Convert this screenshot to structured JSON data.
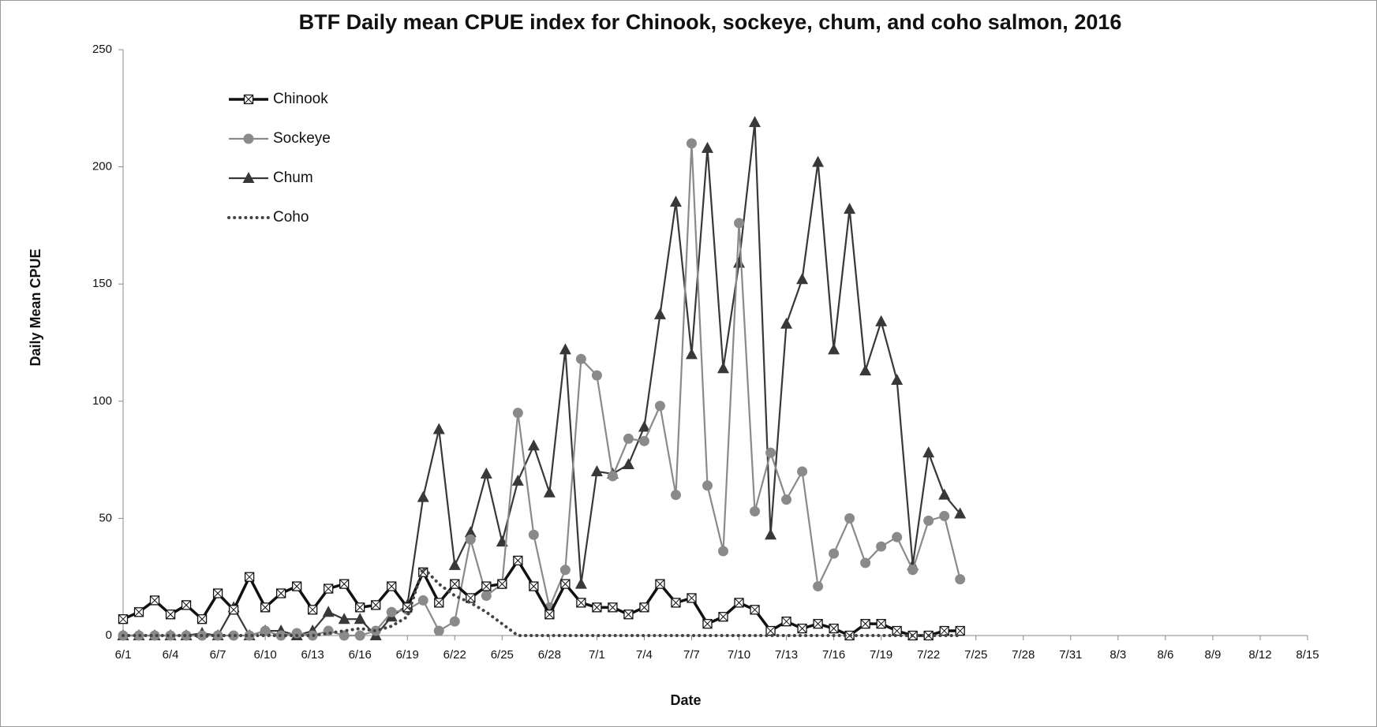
{
  "chart_data": {
    "type": "line",
    "title": "BTF Daily mean CPUE index for Chinook, sockeye, chum, and coho salmon, 2016",
    "x_label": "Date",
    "y_label": "Daily Mean CPUE",
    "categories": [
      "6/1",
      null,
      null,
      "6/4",
      null,
      null,
      "6/7",
      null,
      null,
      "6/10",
      null,
      null,
      "6/13",
      null,
      null,
      "6/16",
      null,
      null,
      "6/19",
      null,
      null,
      "6/22",
      null,
      null,
      "6/25",
      null,
      null,
      "6/28",
      null,
      null,
      "7/1",
      null,
      null,
      "7/4",
      null,
      null,
      "7/7",
      null,
      null,
      "7/10",
      null,
      null,
      "7/13",
      null,
      null,
      "7/16",
      null,
      null,
      "7/19",
      null,
      null,
      "7/22",
      null,
      null,
      "7/25",
      null,
      null,
      "7/28",
      null,
      null,
      "7/31",
      null,
      null,
      "8/3",
      null,
      null,
      "8/6",
      null,
      null,
      "8/9",
      null,
      null,
      "8/12",
      null,
      null,
      "8/15"
    ],
    "ylim": [
      0,
      250
    ],
    "yticks": [
      0,
      50,
      100,
      150,
      200,
      250
    ],
    "grid": false,
    "legend": "upper-left",
    "series": [
      {
        "name": "Chinook",
        "color": "#111111",
        "marker": "boxx",
        "values": [
          7,
          10,
          15,
          9,
          13,
          7,
          18,
          11,
          25,
          12,
          18,
          21,
          11,
          20,
          22,
          12,
          13,
          21,
          12,
          27,
          14,
          22,
          16,
          21,
          22,
          32,
          21,
          9,
          22,
          14,
          12,
          12,
          9,
          12,
          22,
          14,
          16,
          5,
          8,
          14,
          11,
          2,
          6,
          3,
          5,
          3,
          0,
          5,
          5,
          2,
          0,
          0,
          2,
          2,
          null,
          null,
          null,
          null,
          null,
          null,
          null,
          null,
          null,
          null,
          null,
          null,
          null,
          null,
          null,
          null,
          null,
          null,
          null,
          null,
          null,
          null
        ]
      },
      {
        "name": "Sockeye",
        "color": "#8a8a8a",
        "marker": "circle",
        "values": [
          0,
          0,
          0,
          0,
          0,
          0,
          0,
          0,
          0,
          2,
          0,
          1,
          0,
          2,
          0,
          0,
          2,
          10,
          11,
          15,
          2,
          6,
          41,
          17,
          22,
          95,
          43,
          12,
          28,
          118,
          111,
          68,
          84,
          83,
          98,
          60,
          210,
          64,
          36,
          176,
          53,
          78,
          58,
          70,
          21,
          35,
          50,
          31,
          38,
          42,
          28,
          49,
          51,
          24,
          null,
          null,
          null,
          null,
          null,
          null,
          null,
          null,
          null,
          null,
          null,
          null,
          null,
          null,
          null,
          null,
          null,
          null,
          null,
          null,
          null,
          null
        ]
      },
      {
        "name": "Chum",
        "color": "#383838",
        "marker": "triangle",
        "values": [
          0,
          0,
          0,
          0,
          0,
          1,
          0,
          12,
          0,
          2,
          2,
          0,
          2,
          10,
          7,
          7,
          0,
          8,
          13,
          59,
          88,
          30,
          44,
          69,
          40,
          66,
          81,
          61,
          122,
          22,
          70,
          69,
          73,
          89,
          137,
          185,
          120,
          208,
          114,
          159,
          219,
          43,
          133,
          152,
          202,
          122,
          182,
          113,
          134,
          109,
          30,
          78,
          60,
          52,
          null,
          null,
          null,
          null,
          null,
          null,
          null,
          null,
          null,
          null,
          null,
          null,
          null,
          null,
          null,
          null,
          null,
          null,
          null,
          null,
          null,
          null
        ]
      },
      {
        "name": "Coho",
        "color": "#444444",
        "marker": "dotted",
        "values": [
          0,
          0,
          0,
          0,
          0,
          0,
          0,
          0,
          0,
          0,
          0,
          0,
          0,
          1,
          2,
          3,
          2,
          4,
          8,
          29,
          22,
          17,
          14,
          10,
          5,
          0,
          0,
          0,
          0,
          0,
          0,
          0,
          0,
          0,
          0,
          0,
          0,
          0,
          0,
          0,
          0,
          0,
          0,
          0,
          0,
          0,
          0,
          0,
          0,
          0,
          0,
          0,
          0,
          0,
          null,
          null,
          null,
          null,
          null,
          null,
          null,
          null,
          null,
          null,
          null,
          null,
          null,
          null,
          null,
          null,
          null,
          null,
          null,
          null,
          null,
          null
        ]
      }
    ]
  }
}
